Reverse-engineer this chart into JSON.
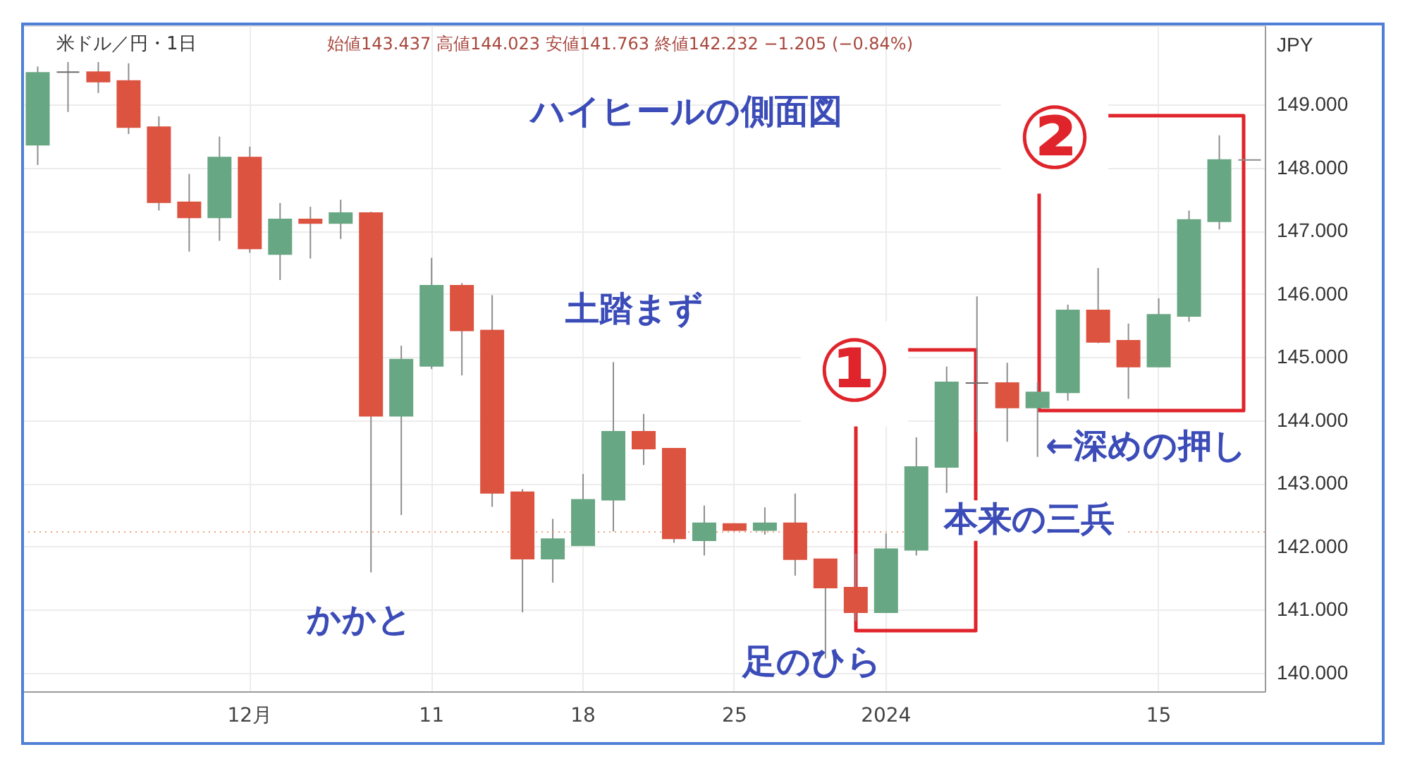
{
  "chart_data": {
    "type": "candlestick",
    "title": "米ドル／円・1日",
    "subtitle": "始値143.437 高値144.023 安値141.763 終値142.232 −1.205 (−0.84%)",
    "ylabel": "JPY",
    "categories": [
      null,
      null,
      null,
      null,
      null,
      null,
      null,
      "12月",
      null,
      null,
      null,
      null,
      null,
      "11",
      null,
      null,
      null,
      null,
      "18",
      null,
      null,
      null,
      null,
      "25",
      null,
      null,
      null,
      null,
      "2024",
      null,
      null,
      null,
      null,
      null,
      null,
      null,
      null,
      "15",
      null,
      null,
      null
    ],
    "ohlc": [
      [
        148.36,
        149.6,
        148.04,
        149.5
      ],
      [
        149.51,
        149.67,
        148.88,
        149.51
      ],
      [
        149.51,
        149.67,
        149.18,
        149.36
      ],
      [
        149.37,
        149.65,
        148.53,
        148.64
      ],
      [
        148.64,
        148.81,
        147.32,
        147.45
      ],
      [
        147.45,
        147.9,
        146.67,
        147.21
      ],
      [
        147.21,
        148.49,
        146.84,
        148.16
      ],
      [
        148.16,
        148.33,
        146.65,
        146.72
      ],
      [
        146.63,
        147.44,
        146.22,
        147.18
      ],
      [
        147.18,
        147.38,
        146.56,
        147.12
      ],
      [
        147.12,
        147.49,
        146.87,
        147.28
      ],
      [
        147.28,
        147.3,
        141.59,
        144.07
      ],
      [
        144.07,
        145.18,
        142.5,
        144.96
      ],
      [
        144.86,
        146.57,
        144.81,
        146.13
      ],
      [
        146.13,
        146.17,
        144.71,
        145.42
      ],
      [
        145.42,
        145.98,
        142.63,
        142.85
      ],
      [
        142.86,
        142.91,
        140.96,
        141.81
      ],
      [
        141.81,
        142.44,
        141.43,
        142.12
      ],
      [
        142.02,
        143.15,
        142.01,
        142.74
      ],
      [
        142.74,
        144.92,
        142.24,
        143.82
      ],
      [
        143.82,
        144.1,
        143.29,
        143.55
      ],
      [
        143.55,
        143.56,
        142.06,
        142.13
      ],
      [
        142.1,
        142.65,
        141.86,
        142.37
      ],
      [
        142.36,
        142.37,
        142.25,
        142.26
      ],
      [
        142.26,
        142.62,
        142.19,
        142.37
      ],
      [
        142.37,
        142.84,
        141.54,
        141.8
      ],
      [
        141.8,
        141.81,
        140.23,
        141.35
      ],
      [
        141.35,
        141.89,
        140.82,
        140.96
      ],
      [
        140.96,
        142.21,
        140.95,
        141.96
      ],
      [
        141.95,
        143.73,
        141.86,
        143.26
      ],
      [
        143.26,
        144.85,
        142.85,
        144.6
      ],
      [
        144.59,
        145.96,
        143.81,
        144.59
      ],
      [
        144.59,
        144.91,
        143.66,
        144.2
      ],
      [
        144.2,
        144.6,
        143.42,
        144.44
      ],
      [
        144.44,
        145.83,
        144.31,
        145.74
      ],
      [
        145.74,
        146.41,
        145.22,
        145.24
      ],
      [
        145.26,
        145.53,
        144.34,
        144.85
      ],
      [
        144.85,
        145.93,
        144.84,
        145.67
      ],
      [
        145.65,
        147.32,
        145.56,
        147.17
      ],
      [
        147.15,
        148.51,
        147.02,
        148.12
      ],
      [
        148.12,
        148.12,
        148.12,
        148.12
      ]
    ],
    "colors": [
      "#68a783",
      "#6b6b6b",
      "#dc5340",
      "#dc5340",
      "#dc5340",
      "#dc5340",
      "#68a783",
      "#dc5340",
      "#68a783",
      "#dc5340",
      "#68a783",
      "#dc5340",
      "#68a783",
      "#68a783",
      "#dc5340",
      "#dc5340",
      "#dc5340",
      "#68a783",
      "#68a783",
      "#68a783",
      "#dc5340",
      "#dc5340",
      "#68a783",
      "#dc5340",
      "#68a783",
      "#dc5340",
      "#dc5340",
      "#dc5340",
      "#68a783",
      "#68a783",
      "#68a783",
      "#6b6b6b",
      "#dc5340",
      "#68a783",
      "#68a783",
      "#dc5340",
      "#dc5340",
      "#68a783",
      "#68a783",
      "#68a783",
      "#8a8a8a"
    ],
    "ylim": [
      139.71,
      150.25
    ],
    "yticks": [
      {
        "value": 140,
        "label": "140.000"
      },
      {
        "value": 141,
        "label": "141.000"
      },
      {
        "value": 142,
        "label": "142.000"
      },
      {
        "value": 143,
        "label": "143.000"
      },
      {
        "value": 144,
        "label": "144.000"
      },
      {
        "value": 145,
        "label": "145.000"
      },
      {
        "value": 146,
        "label": "146.000"
      },
      {
        "value": 147,
        "label": "147.000"
      },
      {
        "value": 148,
        "label": "148.000"
      },
      {
        "value": 149,
        "label": "149.000"
      }
    ],
    "grid": true,
    "ref_lines": [
      {
        "axis": "y",
        "value": 142.232,
        "color": "#f0a27c",
        "line_style": "dotted"
      }
    ],
    "annotations": [
      "ハイヒールの側面図",
      "土踏まず",
      "かかと",
      "足のひら",
      "本来の三兵",
      "←深めの押し",
      "①",
      "②"
    ]
  }
}
